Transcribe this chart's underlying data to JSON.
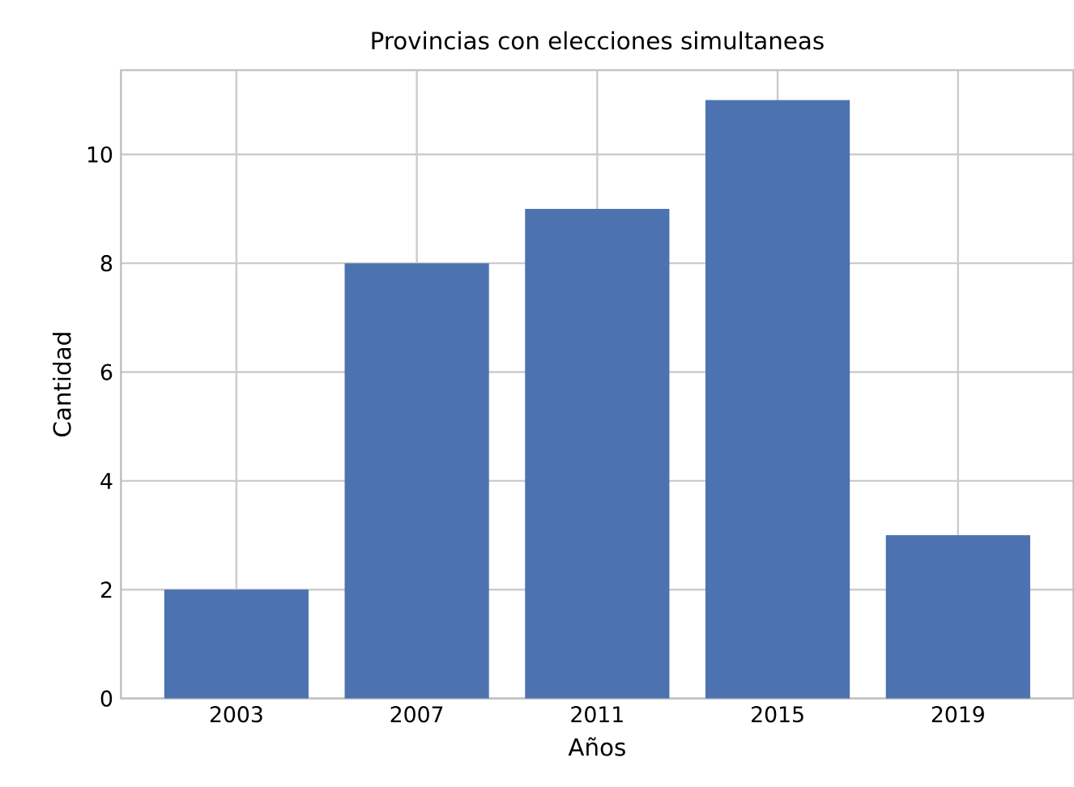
{
  "chart_data": {
    "type": "bar",
    "title": "Provincias con elecciones simultaneas",
    "xlabel": "Años",
    "ylabel": "Cantidad",
    "categories": [
      "2003",
      "2007",
      "2011",
      "2015",
      "2019"
    ],
    "values": [
      2,
      8,
      9,
      11,
      3
    ],
    "color": "#4c72b0",
    "ylim": [
      0,
      11.55
    ],
    "yticks": [
      0,
      2,
      4,
      6,
      8,
      10
    ],
    "grid": true
  }
}
